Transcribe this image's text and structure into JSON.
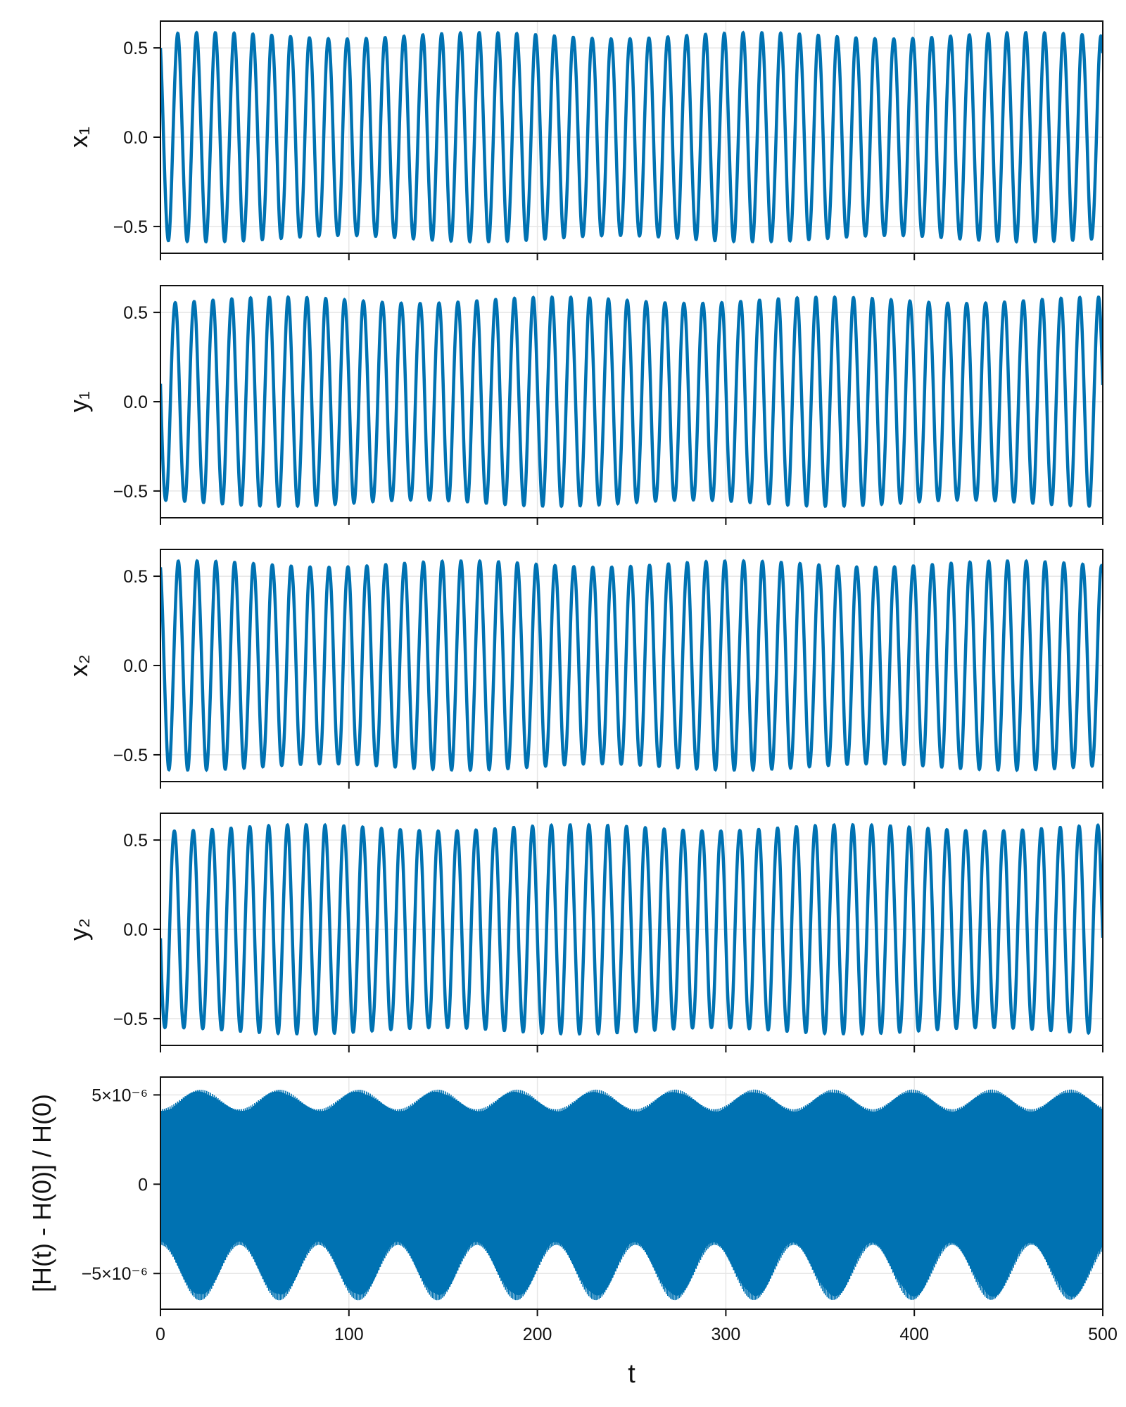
{
  "chart_data": [
    {
      "type": "line",
      "ylabel": "x₁",
      "xlim": [
        0,
        500
      ],
      "ylim": [
        -0.65,
        0.65
      ],
      "xticks": [
        0,
        100,
        200,
        300,
        400,
        500
      ],
      "yticks": [
        -0.5,
        0.0,
        0.5
      ],
      "ytick_labels": [
        "−0.5",
        "0.0",
        "0.5"
      ],
      "show_xtick_labels": false,
      "grid": true,
      "series": [
        {
          "color": "#0072b2",
          "period": 10.0,
          "amplitude": 0.585,
          "start": 0.5,
          "end": -0.45,
          "x": [
            0,
            2.5,
            5,
            7.5,
            10,
            12.5,
            15,
            17.5,
            20,
            25,
            30,
            40,
            50,
            100,
            200,
            300,
            400,
            500
          ],
          "y": [
            0.5,
            -0.55,
            -0.35,
            0.55,
            0.35,
            -0.55,
            -0.35,
            0.55,
            0.45,
            -0.58,
            0.55,
            0.58,
            -0.58,
            0.45,
            0.5,
            0.48,
            0.52,
            -0.45
          ]
        }
      ]
    },
    {
      "type": "line",
      "ylabel": "y₁",
      "xlim": [
        0,
        500
      ],
      "ylim": [
        -0.65,
        0.65
      ],
      "xticks": [
        0,
        100,
        200,
        300,
        400,
        500
      ],
      "yticks": [
        -0.5,
        0.0,
        0.5
      ],
      "ytick_labels": [
        "−0.5",
        "0.0",
        "0.5"
      ],
      "show_xtick_labels": false,
      "grid": true,
      "series": [
        {
          "color": "#0072b2",
          "period": 10.0,
          "amplitude": 0.585,
          "start": 0.1,
          "end": -0.55,
          "x": [
            0,
            2.5,
            5,
            7.5,
            10,
            15,
            20,
            50,
            100,
            200,
            300,
            400,
            500
          ],
          "y": [
            0.1,
            -0.55,
            -0.45,
            0.55,
            0.5,
            -0.58,
            0.55,
            -0.58,
            0.5,
            0.45,
            0.52,
            0.5,
            -0.55
          ]
        }
      ]
    },
    {
      "type": "line",
      "ylabel": "x₂",
      "xlim": [
        0,
        500
      ],
      "ylim": [
        -0.65,
        0.65
      ],
      "xticks": [
        0,
        100,
        200,
        300,
        400,
        500
      ],
      "yticks": [
        -0.5,
        0.0,
        0.5
      ],
      "ytick_labels": [
        "−0.5",
        "0.0",
        "0.5"
      ],
      "show_xtick_labels": false,
      "grid": true,
      "series": [
        {
          "color": "#0072b2",
          "period": 10.0,
          "amplitude": 0.585,
          "start": 0.55,
          "end": -0.4,
          "x": [
            0,
            2.5,
            5,
            7.5,
            10,
            15,
            20,
            50,
            100,
            200,
            300,
            400,
            500
          ],
          "y": [
            0.55,
            -0.5,
            -0.4,
            0.55,
            0.4,
            -0.58,
            0.5,
            -0.58,
            0.45,
            0.5,
            0.48,
            0.52,
            -0.4
          ]
        }
      ]
    },
    {
      "type": "line",
      "ylabel": "y₂",
      "xlim": [
        0,
        500
      ],
      "ylim": [
        -0.65,
        0.65
      ],
      "xticks": [
        0,
        100,
        200,
        300,
        400,
        500
      ],
      "yticks": [
        -0.5,
        0.0,
        0.5
      ],
      "ytick_labels": [
        "−0.5",
        "0.0",
        "0.5"
      ],
      "show_xtick_labels": false,
      "grid": true,
      "series": [
        {
          "color": "#0072b2",
          "period": 10.0,
          "amplitude": 0.585,
          "start": -0.05,
          "end": -0.55,
          "x": [
            0,
            2.5,
            5,
            7.5,
            10,
            15,
            20,
            50,
            100,
            200,
            300,
            400,
            500
          ],
          "y": [
            -0.05,
            -0.55,
            -0.5,
            0.55,
            0.5,
            -0.58,
            0.55,
            -0.58,
            0.5,
            0.45,
            0.52,
            0.5,
            -0.55
          ]
        }
      ]
    },
    {
      "type": "line",
      "ylabel": "[H(t) - H(0)] / H(0)",
      "xlabel": "t",
      "xlim": [
        0,
        500
      ],
      "ylim": [
        -7e-06,
        6e-06
      ],
      "xticks": [
        0,
        100,
        200,
        300,
        400,
        500
      ],
      "xtick_labels": [
        "0",
        "100",
        "200",
        "300",
        "400",
        "500"
      ],
      "yticks": [
        -5e-06,
        0,
        5e-06
      ],
      "ytick_labels": [
        "−5×10⁻⁶",
        "0",
        "5×10⁻⁶"
      ],
      "show_xtick_labels": true,
      "grid": true,
      "series": [
        {
          "color": "#0072b2",
          "envelope_upper_min": 4.2e-06,
          "envelope_upper_max": 5.3e-06,
          "envelope_lower_min": -3.4e-06,
          "envelope_lower_max": -6.5e-06,
          "beat_period": 42.0,
          "x": [
            0,
            21,
            42,
            63,
            84,
            105,
            126,
            147,
            168,
            189,
            210,
            231,
            252,
            273,
            294,
            315,
            336,
            357,
            378,
            399,
            420,
            441,
            462,
            483,
            500
          ],
          "y_upper": [
            4.3e-06,
            5.2e-06,
            4.4e-06,
            5.2e-06,
            4.4e-06,
            5.2e-06,
            4.4e-06,
            5.2e-06,
            4.4e-06,
            5.2e-06,
            4.4e-06,
            5.2e-06,
            4.4e-06,
            5.2e-06,
            4.4e-06,
            5.2e-06,
            4.4e-06,
            5.2e-06,
            4.4e-06,
            5.2e-06,
            4.4e-06,
            5.2e-06,
            4.4e-06,
            5.2e-06,
            4.6e-06
          ],
          "y_lower": [
            -3.4e-06,
            -6.4e-06,
            -3.5e-06,
            -6.4e-06,
            -3.5e-06,
            -6.4e-06,
            -3.5e-06,
            -6.4e-06,
            -3.5e-06,
            -6.4e-06,
            -3.5e-06,
            -6.4e-06,
            -3.5e-06,
            -6.4e-06,
            -3.5e-06,
            -6.4e-06,
            -3.5e-06,
            -6.4e-06,
            -3.5e-06,
            -6.4e-06,
            -3.5e-06,
            -6.4e-06,
            -3.5e-06,
            -6.4e-06,
            -3.8e-06
          ]
        }
      ]
    }
  ]
}
